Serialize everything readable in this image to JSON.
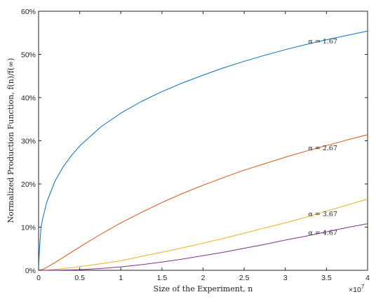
{
  "chart_data": {
    "type": "line",
    "xlabel": "Size of the Experiment, n",
    "ylabel": "Normalized Production Function, f(n)/f(∞)",
    "xlim": [
      0,
      40000000
    ],
    "ylim": [
      0,
      0.6
    ],
    "x_ticks": [
      0,
      5000000,
      10000000,
      15000000,
      20000000,
      25000000,
      30000000,
      35000000,
      40000000
    ],
    "x_tick_labels": [
      "0",
      "0.5",
      "1",
      "1.5",
      "2",
      "2.5",
      "3",
      "3.5",
      "4"
    ],
    "x_multiplier": "×10^7",
    "y_ticks": [
      0,
      0.1,
      0.2,
      0.3,
      0.4,
      0.5,
      0.6
    ],
    "y_tick_labels": [
      "0%",
      "10%",
      "20%",
      "30%",
      "40%",
      "50%",
      "60%"
    ],
    "grid": false,
    "series": [
      {
        "name": "α = 1.67",
        "color": "#0072BD",
        "x": [
          0,
          100000,
          300000,
          500000,
          1000000,
          2000000,
          3000000,
          4000000,
          5000000,
          7500000,
          10000000,
          12500000,
          15000000,
          17500000,
          20000000,
          22500000,
          25000000,
          27500000,
          30000000,
          32500000,
          35000000,
          37500000,
          40000000
        ],
        "y": [
          0,
          0.05,
          0.1,
          0.12,
          0.158,
          0.207,
          0.24,
          0.266,
          0.288,
          0.331,
          0.364,
          0.391,
          0.414,
          0.434,
          0.452,
          0.469,
          0.484,
          0.498,
          0.511,
          0.523,
          0.534,
          0.544,
          0.554
        ]
      },
      {
        "name": "α = 2.67",
        "color": "#D95319",
        "x": [
          0,
          500000,
          1000000,
          2000000,
          3000000,
          4000000,
          5000000,
          7500000,
          10000000,
          12500000,
          15000000,
          17500000,
          20000000,
          22500000,
          25000000,
          27500000,
          30000000,
          32500000,
          35000000,
          37500000,
          40000000
        ],
        "y": [
          0,
          0.002,
          0.007,
          0.018,
          0.03,
          0.042,
          0.054,
          0.083,
          0.11,
          0.134,
          0.157,
          0.178,
          0.197,
          0.215,
          0.232,
          0.247,
          0.262,
          0.276,
          0.289,
          0.302,
          0.314
        ]
      },
      {
        "name": "α = 3.67",
        "color": "#EDB120",
        "x": [
          0,
          1000000,
          2000000,
          3000000,
          4000000,
          5000000,
          7500000,
          10000000,
          12500000,
          15000000,
          17500000,
          20000000,
          22500000,
          25000000,
          27500000,
          30000000,
          32500000,
          35000000,
          37500000,
          40000000
        ],
        "y": [
          0,
          0.0005,
          0.002,
          0.004,
          0.006,
          0.0085,
          0.015,
          0.022,
          0.032,
          0.042,
          0.052,
          0.063,
          0.074,
          0.086,
          0.098,
          0.11,
          0.123,
          0.137,
          0.151,
          0.165
        ]
      },
      {
        "name": "α = 4.67",
        "color": "#7E2F8E",
        "x": [
          0,
          2500000,
          5000000,
          7500000,
          10000000,
          12500000,
          15000000,
          17500000,
          20000000,
          22500000,
          25000000,
          27500000,
          30000000,
          32500000,
          35000000,
          37500000,
          40000000
        ],
        "y": [
          0,
          0.0005,
          0.0015,
          0.004,
          0.008,
          0.013,
          0.019,
          0.026,
          0.034,
          0.042,
          0.051,
          0.06,
          0.07,
          0.079,
          0.089,
          0.099,
          0.108
        ]
      }
    ]
  }
}
